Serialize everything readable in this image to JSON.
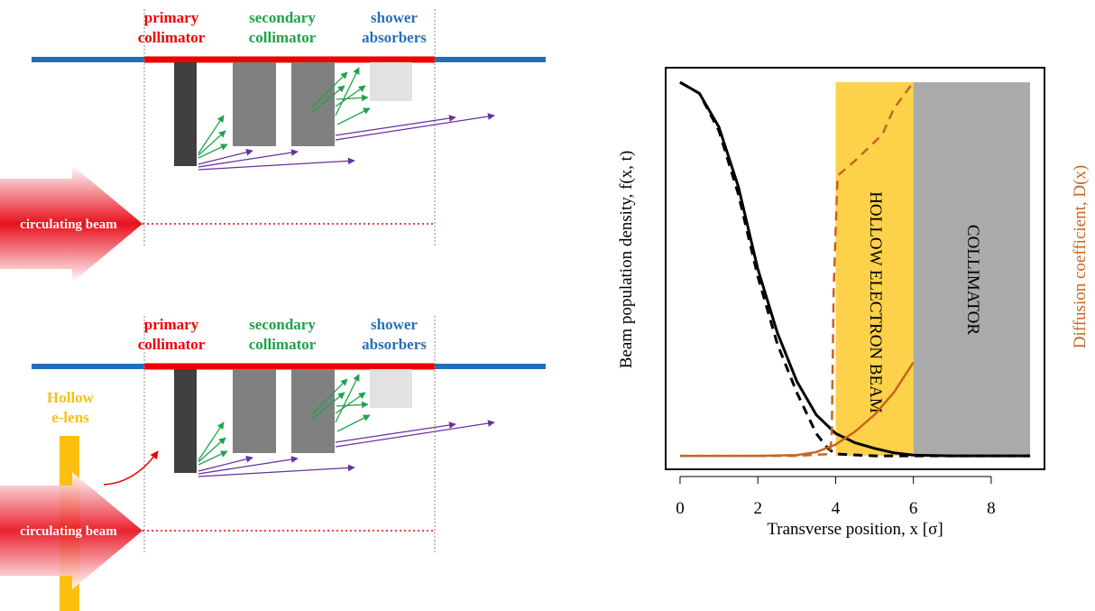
{
  "diagram": {
    "panels": [
      {
        "labels": [
          [
            "primary",
            "collimator"
          ],
          [
            "secondary",
            "collimator"
          ],
          [
            "shower",
            "absorbers"
          ]
        ],
        "beam": "circulating beam"
      },
      {
        "labels": [
          [
            "primary",
            "collimator"
          ],
          [
            "secondary",
            "collimator"
          ],
          [
            "shower",
            "absorbers"
          ]
        ],
        "beam": "circulating beam",
        "lens": [
          "Hollow",
          "e-lens"
        ]
      }
    ]
  },
  "chart_data": {
    "type": "line",
    "x_label": "Transverse position, x [σ]",
    "y_label": "Beam population density, f(x, t)",
    "y2_label": "Diffusion coefficient, D(x)",
    "xlim": [
      -0.37,
      9.37
    ],
    "xticks": [
      0,
      2,
      4,
      6,
      8
    ],
    "ylim": [
      -0.036,
      1.039
    ],
    "regions": [
      {
        "label": "HOLLOW ELECTRON BEAM",
        "xlim": [
          4,
          6
        ],
        "ylim": [
          0,
          1
        ],
        "color": "#fdd24a"
      },
      {
        "label": "COLLIMATOR",
        "xlim": [
          6,
          9
        ],
        "ylim": [
          0,
          1
        ],
        "color": "#aaaaaa"
      }
    ],
    "series": [
      {
        "color": "#000000",
        "dash": false,
        "x": [
          0,
          0.5,
          1,
          1.5,
          2,
          2.5,
          3,
          3.5,
          4,
          4.5,
          5,
          5.5,
          6,
          7,
          8,
          9
        ],
        "values": [
          1,
          0.97,
          0.88,
          0.72,
          0.5,
          0.33,
          0.2,
          0.11,
          0.06,
          0.035,
          0.02,
          0.008,
          0.002,
          0,
          0,
          0
        ]
      },
      {
        "color": "#000000",
        "dash": true,
        "x": [
          0,
          0.5,
          1,
          1.5,
          2,
          2.5,
          3,
          3.5,
          3.8,
          4,
          5,
          6,
          7,
          8,
          9
        ],
        "values": [
          1,
          0.97,
          0.87,
          0.7,
          0.48,
          0.3,
          0.17,
          0.06,
          0.02,
          0.005,
          0,
          0,
          0,
          0,
          0
        ]
      },
      {
        "color": "#c8641e",
        "dash": false,
        "x": [
          0,
          1,
          2,
          3,
          3.5,
          4,
          4.5,
          5,
          5.5,
          6
        ],
        "values": [
          0,
          0,
          0,
          0.002,
          0.01,
          0.03,
          0.065,
          0.11,
          0.17,
          0.25
        ]
      },
      {
        "color": "#c8641e",
        "dash": true,
        "x": [
          0,
          1,
          2,
          3,
          3.85,
          3.9,
          3.95,
          4.05,
          4.5,
          5,
          5.2,
          5.5,
          6
        ],
        "values": [
          0,
          0,
          0,
          0,
          0.005,
          0.05,
          0.45,
          0.75,
          0.79,
          0.84,
          0.86,
          0.93,
          1
        ]
      }
    ]
  }
}
